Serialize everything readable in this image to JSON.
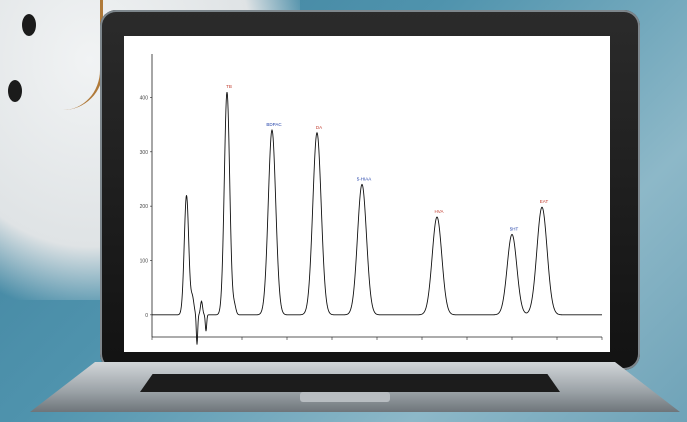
{
  "chart_data": {
    "type": "line",
    "title": "",
    "xlabel": "",
    "ylabel": "",
    "xlim": [
      0,
      30
    ],
    "ylim": [
      -50,
      480
    ],
    "grid": false,
    "y_ticks": [
      "400",
      "300",
      "200",
      "100",
      "0"
    ],
    "peaks": [
      {
        "x": 2.3,
        "height": 220,
        "width": 0.15,
        "label": "",
        "color": "#000000"
      },
      {
        "x": 5.0,
        "height": 410,
        "width": 0.18,
        "label": "TB",
        "color": "#c0392b"
      },
      {
        "x": 8.0,
        "height": 340,
        "width": 0.25,
        "label": "BDPAC",
        "color": "#1f3fa8"
      },
      {
        "x": 11.0,
        "height": 335,
        "width": 0.28,
        "label": "DA",
        "color": "#c0392b"
      },
      {
        "x": 14.0,
        "height": 240,
        "width": 0.3,
        "label": "5-HIAA",
        "color": "#1f3fa8"
      },
      {
        "x": 19.0,
        "height": 180,
        "width": 0.32,
        "label": "HVA",
        "color": "#c0392b"
      },
      {
        "x": 24.0,
        "height": 148,
        "width": 0.32,
        "label": "5HT",
        "color": "#1f3fa8"
      },
      {
        "x": 26.0,
        "height": 198,
        "width": 0.34,
        "label": "EAT",
        "color": "#c0392b"
      }
    ]
  }
}
